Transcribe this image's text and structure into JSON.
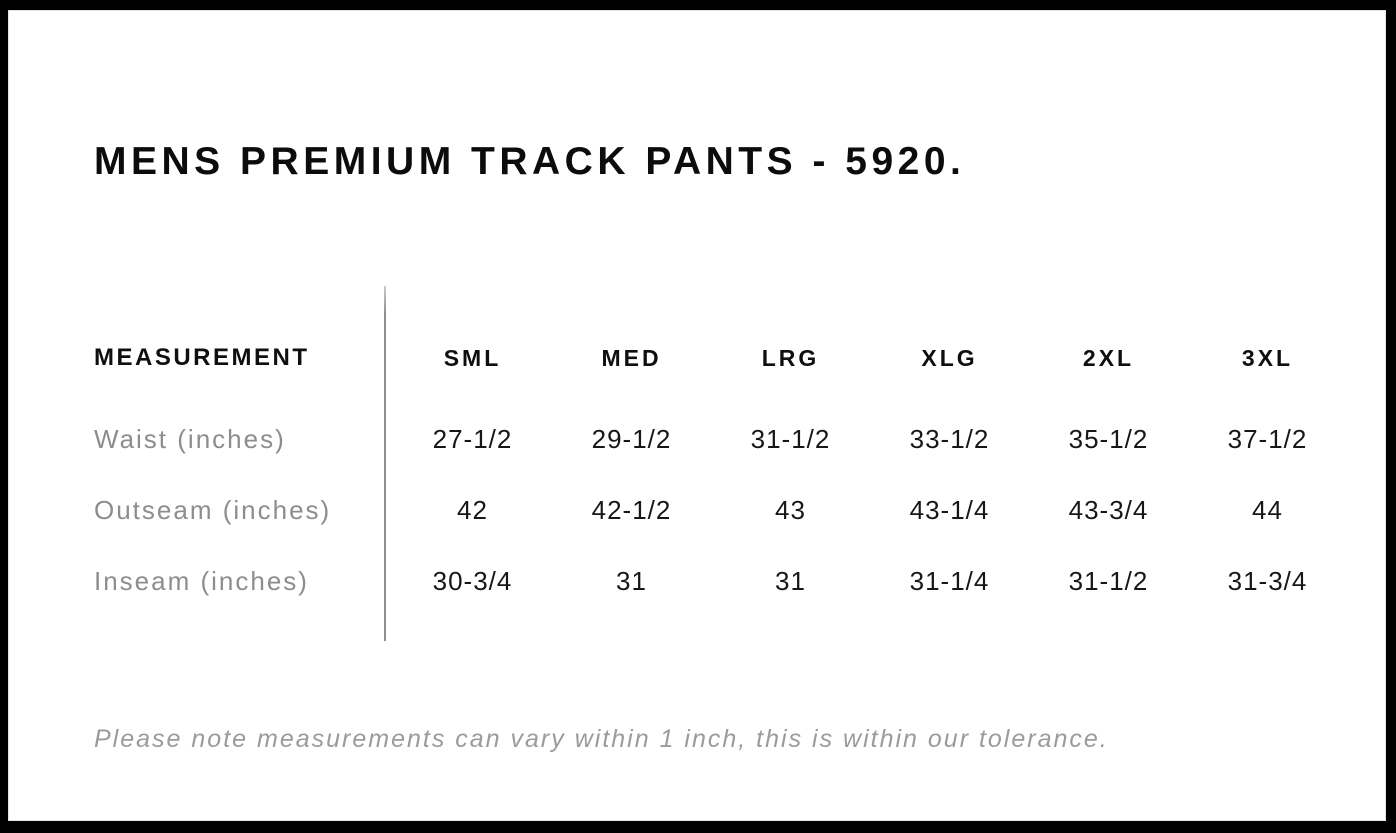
{
  "title": "MENS PREMIUM TRACK PANTS - 5920.",
  "size_chart": {
    "measurement_header": "MEASUREMENT",
    "size_headers": [
      "SML",
      "MED",
      "LRG",
      "XLG",
      "2XL",
      "3XL"
    ],
    "rows": [
      {
        "label": "Waist (inches)",
        "values": [
          "27-1/2",
          "29-1/2",
          "31-1/2",
          "33-1/2",
          "35-1/2",
          "37-1/2"
        ]
      },
      {
        "label": "Outseam (inches)",
        "values": [
          "42",
          "42-1/2",
          "43",
          "43-1/4",
          "43-3/4",
          "44"
        ]
      },
      {
        "label": "Inseam (inches)",
        "values": [
          "30-3/4",
          "31",
          "31",
          "31-1/4",
          "31-1/2",
          "31-3/4"
        ]
      }
    ]
  },
  "footnote": "Please note measurements can vary within 1 inch, this is within our tolerance.",
  "colors": {
    "frame_background": "#000000",
    "page_background": "#ffffff",
    "heading_text": "#0c0c0c",
    "value_text": "#171717",
    "muted_text": "#8d8d8d",
    "divider": "#8f8f8f"
  },
  "chart_data": {
    "type": "table",
    "title": "MENS PREMIUM TRACK PANTS - 5920.",
    "columns": [
      "MEASUREMENT",
      "SML",
      "MED",
      "LRG",
      "XLG",
      "2XL",
      "3XL"
    ],
    "rows": [
      [
        "Waist (inches)",
        "27-1/2",
        "29-1/2",
        "31-1/2",
        "33-1/2",
        "35-1/2",
        "37-1/2"
      ],
      [
        "Outseam (inches)",
        "42",
        "42-1/2",
        "43",
        "43-1/4",
        "43-3/4",
        "44"
      ],
      [
        "Inseam (inches)",
        "30-3/4",
        "31",
        "31",
        "31-1/4",
        "31-1/2",
        "31-3/4"
      ]
    ],
    "note": "Please note measurements can vary within 1 inch, this is within our tolerance.",
    "units": "inches"
  }
}
